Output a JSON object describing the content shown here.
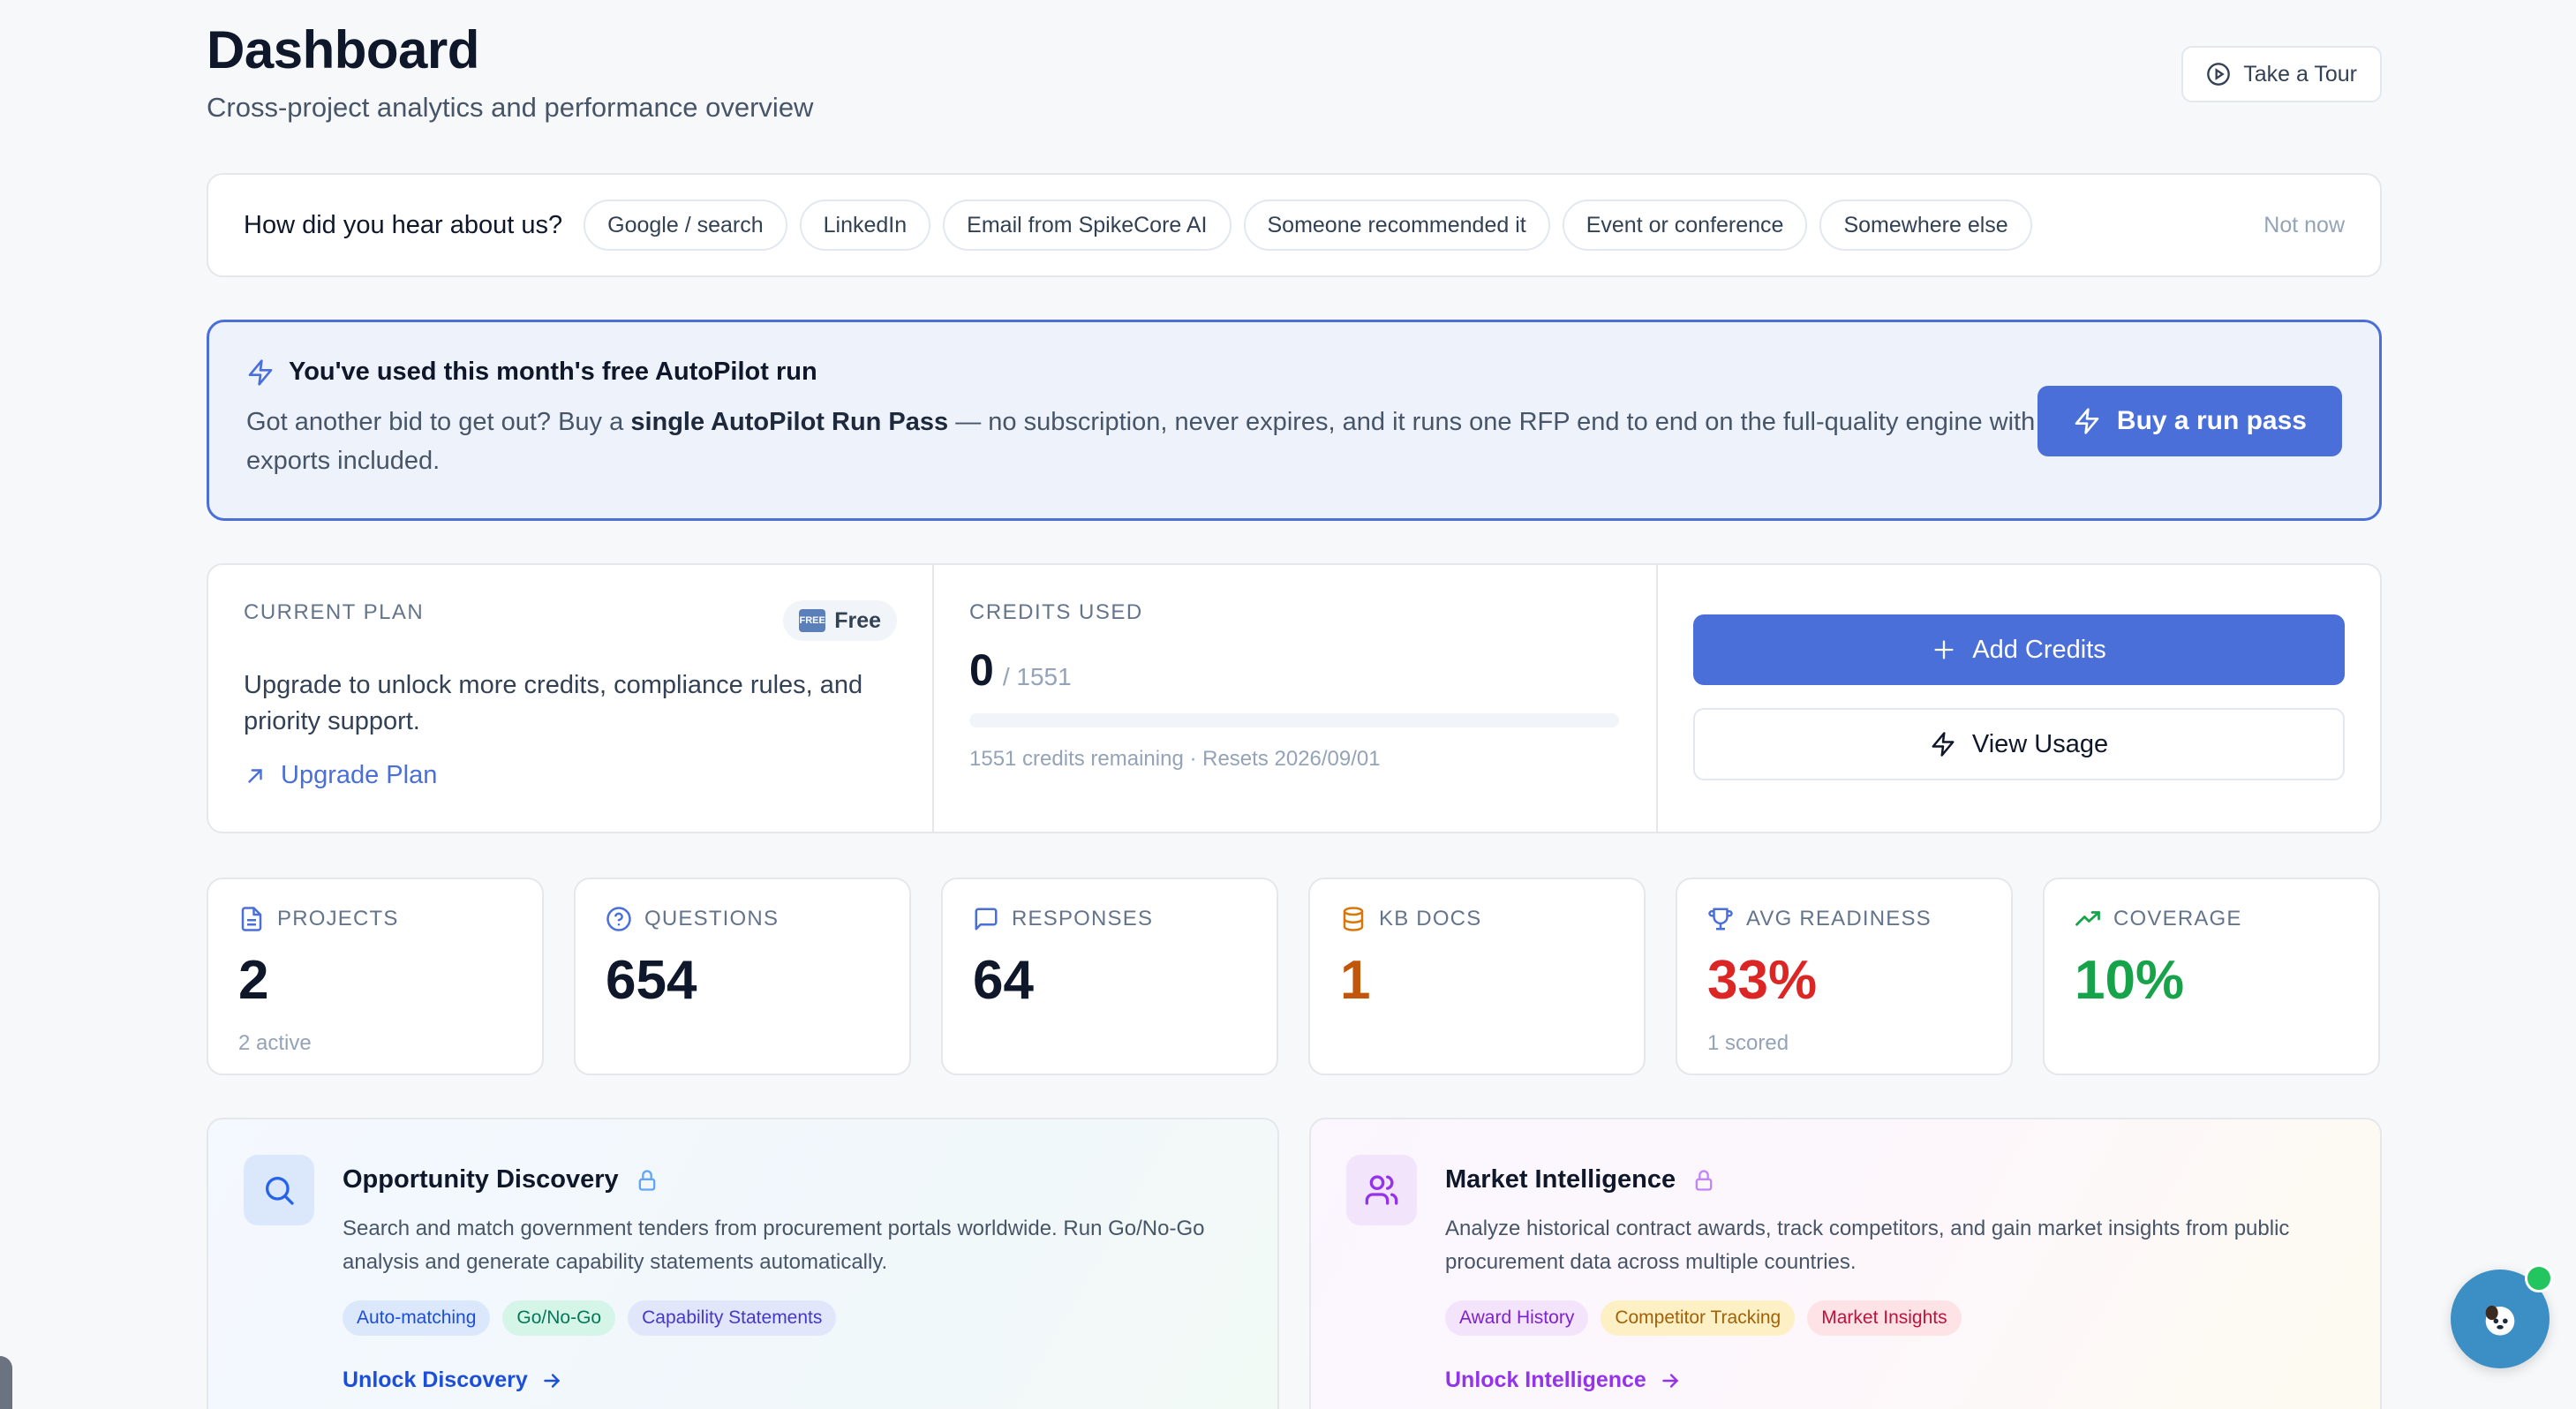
{
  "header": {
    "title": "Dashboard",
    "subtitle": "Cross-project analytics and performance overview",
    "tour_label": "Take a Tour"
  },
  "survey": {
    "question": "How did you hear about us?",
    "options": [
      "Google / search",
      "LinkedIn",
      "Email from SpikeCore AI",
      "Someone recommended it",
      "Event or conference",
      "Somewhere else"
    ],
    "dismiss": "Not now"
  },
  "promo": {
    "title": "You've used this month's free AutoPilot run",
    "body_pre": "Got another bid to get out? Buy a ",
    "body_bold": "single AutoPilot Run Pass",
    "body_post": " — no subscription, never expires, and it runs one RFP end to end on the full-quality engine with exports included.",
    "button": "Buy a run pass"
  },
  "plan": {
    "label": "CURRENT PLAN",
    "badge_icon": "FREE",
    "badge": "Free",
    "description": "Upgrade to unlock more credits, compliance rules, and priority support.",
    "upgrade_link": "Upgrade Plan"
  },
  "credits": {
    "label": "CREDITS USED",
    "used": "0",
    "total": "/ 1551",
    "progress_fraction": 0,
    "note": "1551 credits remaining · Resets 2026/09/01"
  },
  "actions": {
    "add_credits": "Add Credits",
    "view_usage": "View Usage"
  },
  "stats": [
    {
      "label": "PROJECTS",
      "value": "2",
      "sub": "2 active",
      "icon": "document-icon",
      "color": "#0f172a",
      "icon_color": "#4a6fd8"
    },
    {
      "label": "QUESTIONS",
      "value": "654",
      "sub": "",
      "icon": "question-icon",
      "color": "#0f172a",
      "icon_color": "#4a6fd8"
    },
    {
      "label": "RESPONSES",
      "value": "64",
      "sub": "",
      "icon": "chat-icon",
      "color": "#0f172a",
      "icon_color": "#4a6fd8"
    },
    {
      "label": "KB DOCS",
      "value": "1",
      "sub": "",
      "icon": "database-icon",
      "color": "#c2570c",
      "icon_color": "#d97706"
    },
    {
      "label": "AVG READINESS",
      "value": "33%",
      "sub": "1 scored",
      "icon": "trophy-icon",
      "color": "#dc2626",
      "icon_color": "#4a6fd8"
    },
    {
      "label": "COVERAGE",
      "value": "10%",
      "sub": "",
      "icon": "trending-up-icon",
      "color": "#16a34a",
      "icon_color": "#16a34a"
    }
  ],
  "features": [
    {
      "title": "Opportunity Discovery",
      "description": "Search and match government tenders from procurement portals worldwide. Run Go/No-Go analysis and generate capability statements automatically.",
      "tags": [
        {
          "label": "Auto-matching",
          "bg": "#dbe7fb",
          "fg": "#1d4ed8"
        },
        {
          "label": "Go/No-Go",
          "bg": "#d5f5e9",
          "fg": "#047857"
        },
        {
          "label": "Capability Statements",
          "bg": "#e2e6fb",
          "fg": "#4338ca"
        }
      ],
      "link": "Unlock Discovery",
      "link_color": "#1d4ed8",
      "lock_color": "#60a5fa"
    },
    {
      "title": "Market Intelligence",
      "description": "Analyze historical contract awards, track competitors, and gain market insights from public procurement data across multiple countries.",
      "tags": [
        {
          "label": "Award History",
          "bg": "#f3e3fb",
          "fg": "#7e22ce"
        },
        {
          "label": "Competitor Tracking",
          "bg": "#fdf0c4",
          "fg": "#a16207"
        },
        {
          "label": "Market Insights",
          "bg": "#fde2e6",
          "fg": "#be123c"
        }
      ],
      "link": "Unlock Intelligence",
      "link_color": "#9333ea",
      "lock_color": "#c084fc"
    }
  ],
  "colors": {
    "accent": "#4a6fd8",
    "promo_border": "#4a6fd8",
    "chat_bubble": "#3b8fc5",
    "online_dot": "#22c55e"
  }
}
